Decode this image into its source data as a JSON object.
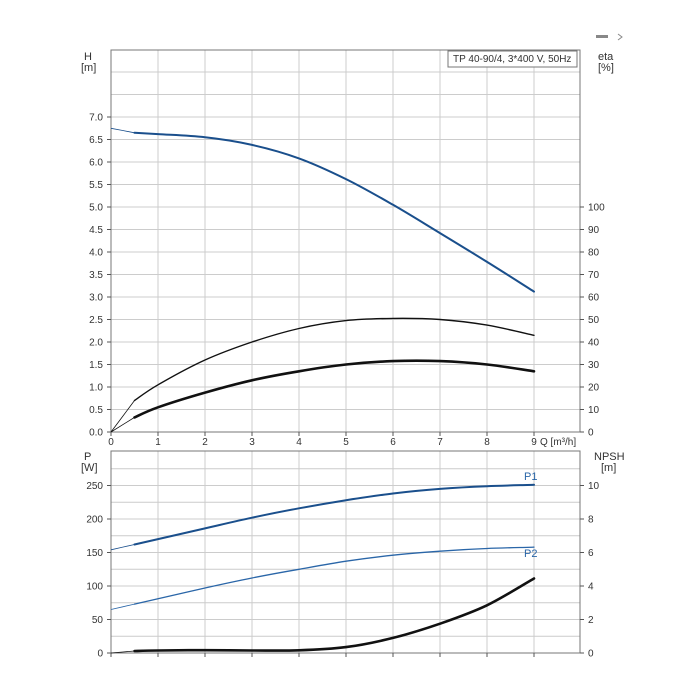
{
  "toolbar": {
    "icons": [
      "minimize-icon",
      "collapse-icon"
    ]
  },
  "chart_data": [
    {
      "type": "line",
      "title": "TP 40-90/4, 3*400 V, 50Hz",
      "xlabel": "Q [m³/h]",
      "ylabel_left": [
        "H",
        "[m]"
      ],
      "ylabel_right": [
        "eta",
        "[%]"
      ],
      "xlim": [
        0,
        10
      ],
      "ylim_left": [
        0,
        8.5
      ],
      "ylim_right": [
        0,
        100
      ],
      "grid": true,
      "x_ticks": [
        "0",
        "1",
        "2",
        "3",
        "4",
        "5",
        "6",
        "7",
        "8",
        "9"
      ],
      "y_ticks_left": [
        "0.0",
        "0.5",
        "1.0",
        "1.5",
        "2.0",
        "2.5",
        "3.0",
        "3.5",
        "4.0",
        "4.5",
        "5.0",
        "5.5",
        "6.0",
        "6.5",
        "7.0"
      ],
      "y_ticks_right": [
        "0",
        "10",
        "20",
        "30",
        "40",
        "50",
        "60",
        "70",
        "80",
        "90",
        "100"
      ],
      "series": [
        {
          "axis": "left",
          "color": "#1a4f8c",
          "x": [
            0,
            0.5,
            1,
            2,
            3,
            4,
            5,
            6,
            7,
            8,
            9
          ],
          "y": [
            6.75,
            6.65,
            6.62,
            6.55,
            6.38,
            6.08,
            5.62,
            5.05,
            4.42,
            3.78,
            3.12
          ]
        },
        {
          "axis": "right",
          "color": "#111111",
          "x": [
            0,
            0.5,
            1,
            2,
            3,
            4,
            5,
            6,
            7,
            8,
            9
          ],
          "y": [
            0,
            14,
            21,
            32,
            40,
            46,
            49.5,
            50.5,
            50,
            47.5,
            43
          ]
        },
        {
          "axis": "right",
          "color": "#111111",
          "x": [
            0,
            0.5,
            1,
            2,
            3,
            4,
            5,
            6,
            7,
            8,
            9
          ],
          "y": [
            0,
            6.5,
            11,
            17.5,
            23,
            27,
            30,
            31.5,
            31.5,
            30,
            27
          ]
        }
      ]
    },
    {
      "type": "line",
      "xlabel": "",
      "ylabel_left": [
        "P",
        "[W]"
      ],
      "ylabel_right": [
        "NPSH",
        "[m]"
      ],
      "xlim": [
        0,
        10
      ],
      "ylim_left": [
        0,
        300
      ],
      "ylim_right": [
        0,
        12
      ],
      "grid": true,
      "y_ticks_left": [
        "0",
        "50",
        "100",
        "150",
        "200",
        "250"
      ],
      "y_ticks_right": [
        "0",
        "2",
        "4",
        "6",
        "8",
        "10"
      ],
      "series": [
        {
          "name": "P1",
          "axis": "left",
          "color": "#1a4f8c",
          "x": [
            0,
            0.5,
            1,
            2,
            3,
            4,
            5,
            6,
            7,
            8,
            9
          ],
          "y": [
            154,
            162,
            170,
            186,
            202,
            216,
            228,
            238,
            245,
            249,
            251
          ]
        },
        {
          "name": "P2",
          "axis": "left",
          "color": "#2a66a8",
          "x": [
            0,
            0.5,
            1,
            2,
            3,
            4,
            5,
            6,
            7,
            8,
            9
          ],
          "y": [
            65,
            73,
            81,
            97,
            112,
            125,
            137,
            146,
            152,
            156,
            158
          ]
        },
        {
          "axis": "right",
          "color": "#111111",
          "x": [
            0,
            0.5,
            1,
            2,
            3,
            4,
            5,
            6,
            7,
            8,
            9
          ],
          "y": [
            0,
            0.12,
            0.15,
            0.17,
            0.15,
            0.16,
            0.35,
            0.9,
            1.75,
            2.85,
            4.45
          ]
        }
      ]
    }
  ]
}
